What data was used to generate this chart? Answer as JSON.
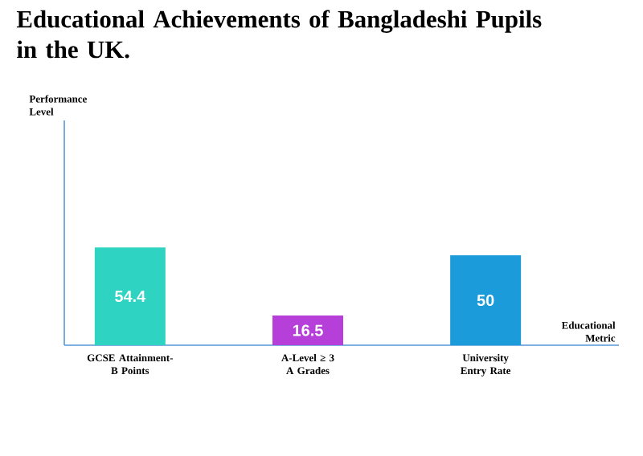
{
  "chart_data": {
    "type": "bar",
    "title": "Educational Achievements of Bangladeshi Pupils in the UK.",
    "xlabel": "Educational Metric",
    "annotations": [
      "Performance Level"
    ],
    "categories": [
      "GCSE Attainment-B Points",
      "A-Level ≥ 3 A Grades",
      "University Entry Rate"
    ],
    "values": [
      54.4,
      16.5,
      50
    ],
    "colors": [
      "#2fd3c1",
      "#b63fd9",
      "#1b9bd9"
    ],
    "data_labels": true
  }
}
